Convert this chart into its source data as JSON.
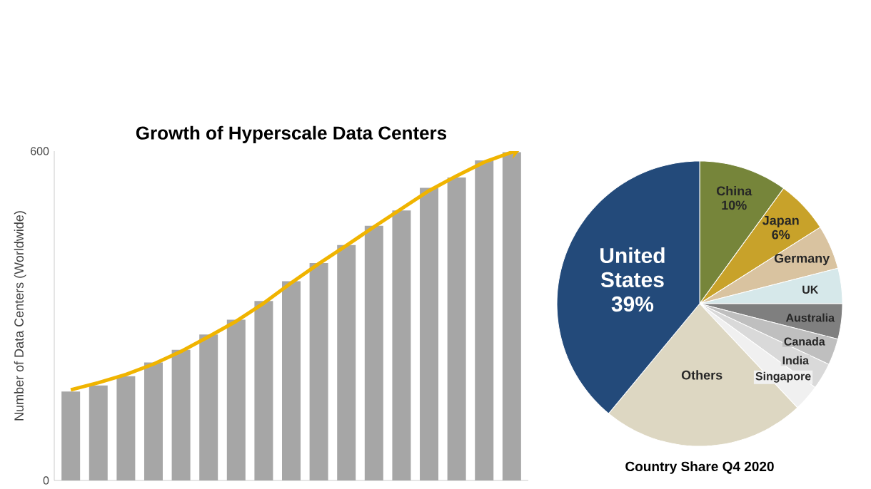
{
  "chart_data": [
    {
      "type": "bar",
      "title": "Growth of Hyperscale Data Centers",
      "ylabel": "Number of Data Centers (Worldwide)",
      "categories": [
        null,
        null,
        null,
        null,
        null,
        null,
        null,
        null,
        null,
        null,
        null,
        null,
        null,
        null,
        null,
        null,
        null
      ],
      "series": [
        {
          "type": "bar",
          "color": "#a6a6a6",
          "values": [
            162,
            173,
            190,
            215,
            238,
            266,
            293,
            327,
            363,
            396,
            429,
            464,
            492,
            533,
            552,
            583,
            598
          ]
        },
        {
          "type": "line",
          "color": "#f0b400",
          "values": [
            165,
            178,
            193,
            212,
            235,
            262,
            290,
            323,
            360,
            395,
            428,
            462,
            495,
            528,
            555,
            580,
            598
          ]
        }
      ],
      "ylim": [
        0,
        600
      ],
      "yticks": [
        0,
        600
      ]
    },
    {
      "type": "pie",
      "title": "Country Share Q4 2020",
      "categories": [
        "China",
        "Japan",
        "Germany",
        "UK",
        "Australia",
        "Canada",
        "India",
        "Singapore",
        "Others",
        "United States"
      ],
      "values": [
        10,
        6,
        5,
        4,
        4,
        3,
        3,
        3,
        23,
        39
      ],
      "value_labels": [
        "10%",
        "6%",
        null,
        null,
        null,
        null,
        null,
        null,
        null,
        "39%"
      ],
      "colors": [
        "#76853a",
        "#c8a22a",
        "#d9c3a0",
        "#d6e8ea",
        "#7f7f7f",
        "#bfbfbf",
        "#d9d9d9",
        "#f0f0f0",
        "#ddd7c2",
        "#234a7a"
      ]
    }
  ]
}
